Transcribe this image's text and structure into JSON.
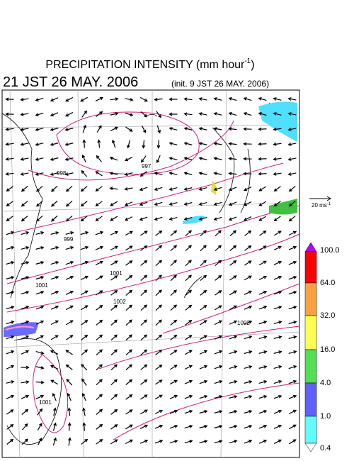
{
  "header": {
    "title": "PRECIPITATION INTENSITY (mm hour",
    "title_exponent": "-1",
    "title_close": ")",
    "valid_time": "21 JST 26 MAY. 2006",
    "init_time": "(init. 9 JST 26 MAY. 2006)"
  },
  "vector_scale": {
    "label": "20 ms",
    "exponent": "-1"
  },
  "colorbar": {
    "labels": [
      "100.0",
      "64.0",
      "32.0",
      "16.0",
      "4.0",
      "1.0",
      "0.4"
    ]
  },
  "contour_labels": [
    "998",
    "997",
    "999",
    "1001",
    "1002",
    "1001",
    "1002",
    "1001"
  ]
}
